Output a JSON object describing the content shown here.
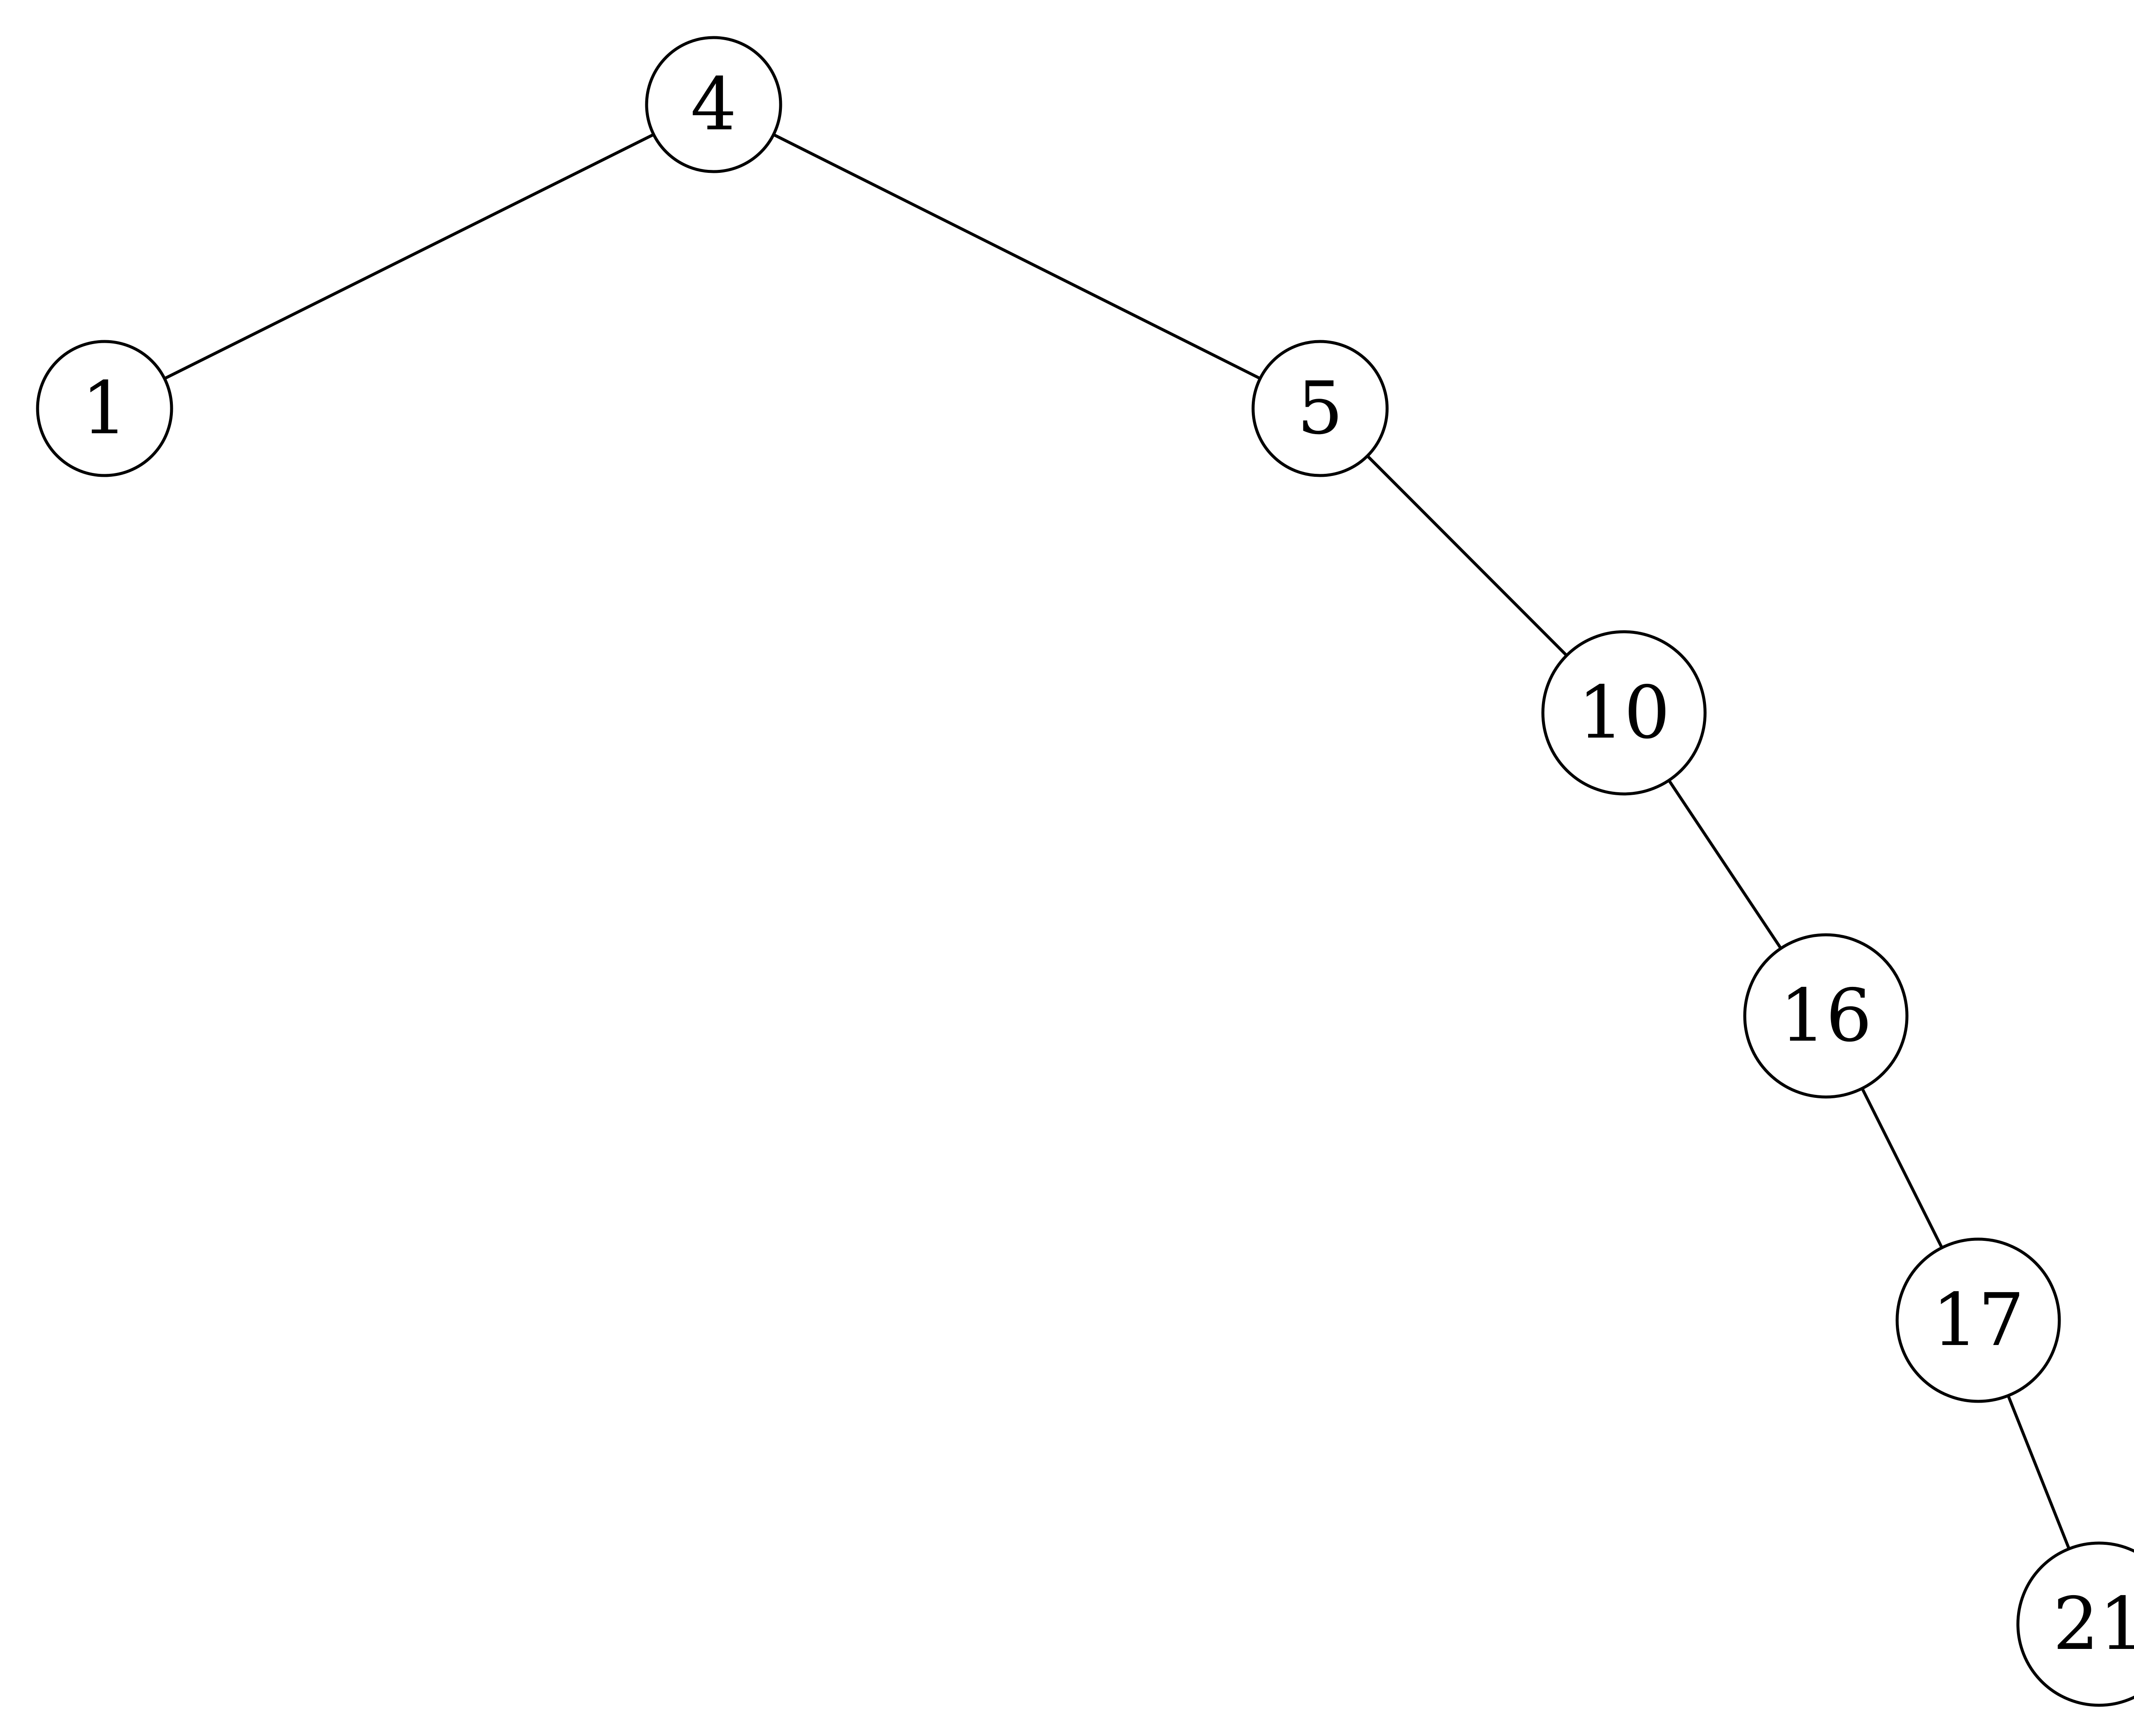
{
  "diagram": {
    "type": "binary-tree",
    "nodes": [
      {
        "id": "n4",
        "label": "4"
      },
      {
        "id": "n1",
        "label": "1"
      },
      {
        "id": "n5",
        "label": "5"
      },
      {
        "id": "n10",
        "label": "10"
      },
      {
        "id": "n16",
        "label": "16"
      },
      {
        "id": "n17",
        "label": "17"
      },
      {
        "id": "n21",
        "label": "21"
      }
    ],
    "edges": [
      {
        "from": "n4",
        "to": "n1"
      },
      {
        "from": "n4",
        "to": "n5"
      },
      {
        "from": "n5",
        "to": "n10"
      },
      {
        "from": "n10",
        "to": "n16"
      },
      {
        "from": "n16",
        "to": "n17"
      },
      {
        "from": "n17",
        "to": "n21"
      }
    ]
  }
}
